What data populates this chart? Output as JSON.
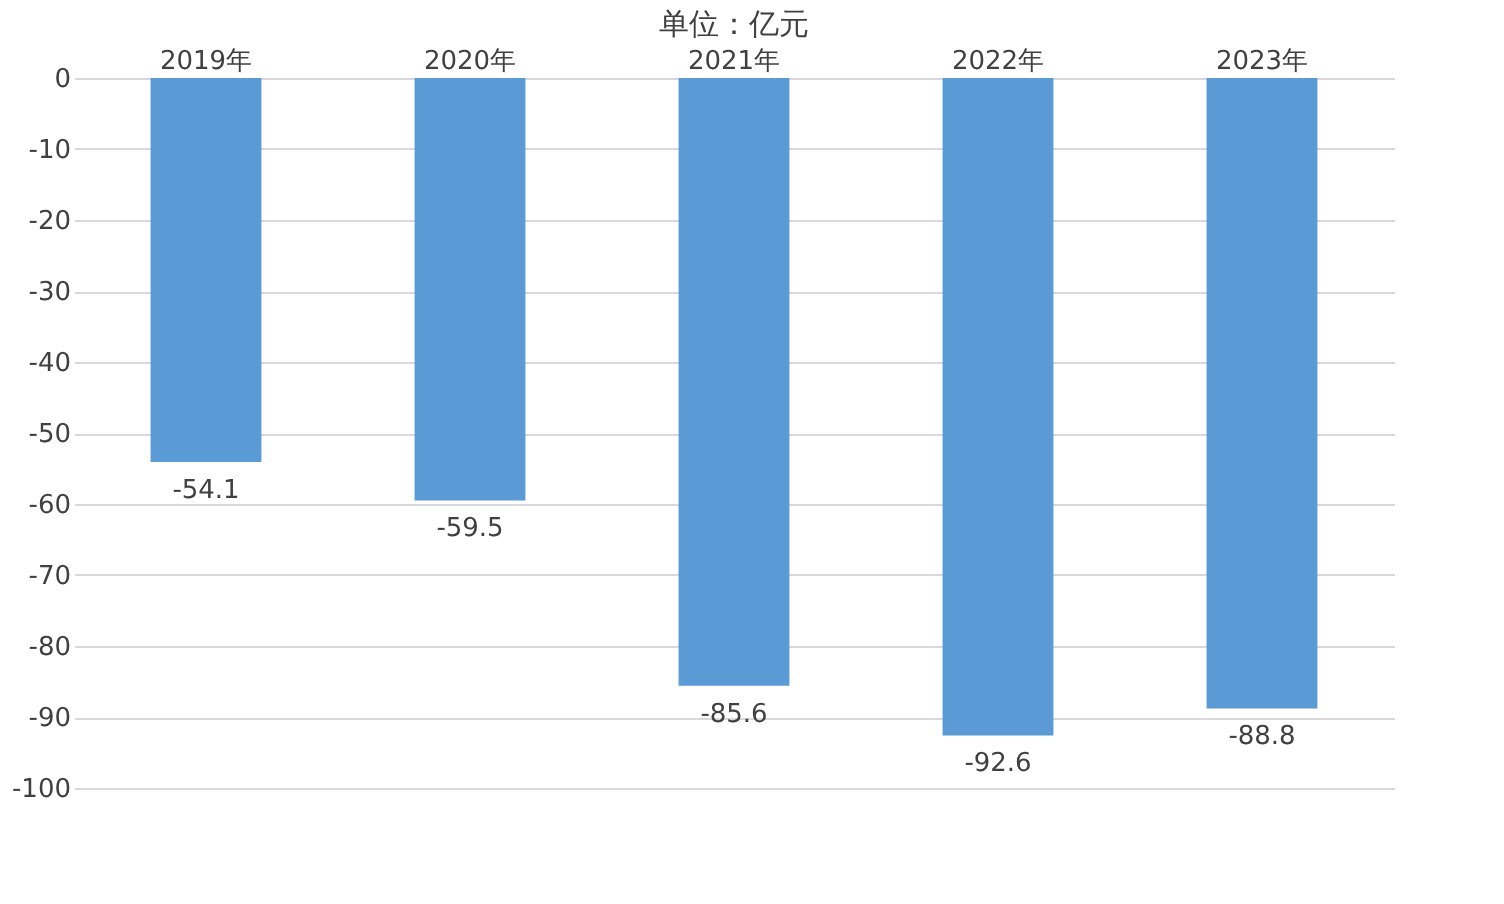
{
  "chart_data": {
    "type": "bar",
    "title": "单位：亿元",
    "categories": [
      "2019年",
      "2020年",
      "2021年",
      "2022年",
      "2023年"
    ],
    "values": [
      -54.1,
      -59.5,
      -85.6,
      -92.6,
      -88.8
    ],
    "color": "#5b9bd5",
    "ylim": [
      -100,
      0
    ],
    "yticks": [
      -100,
      -90,
      -80,
      -70,
      -60,
      -50,
      -40,
      -30,
      -20,
      -10,
      0
    ],
    "grid": "y",
    "data_labels": true
  }
}
